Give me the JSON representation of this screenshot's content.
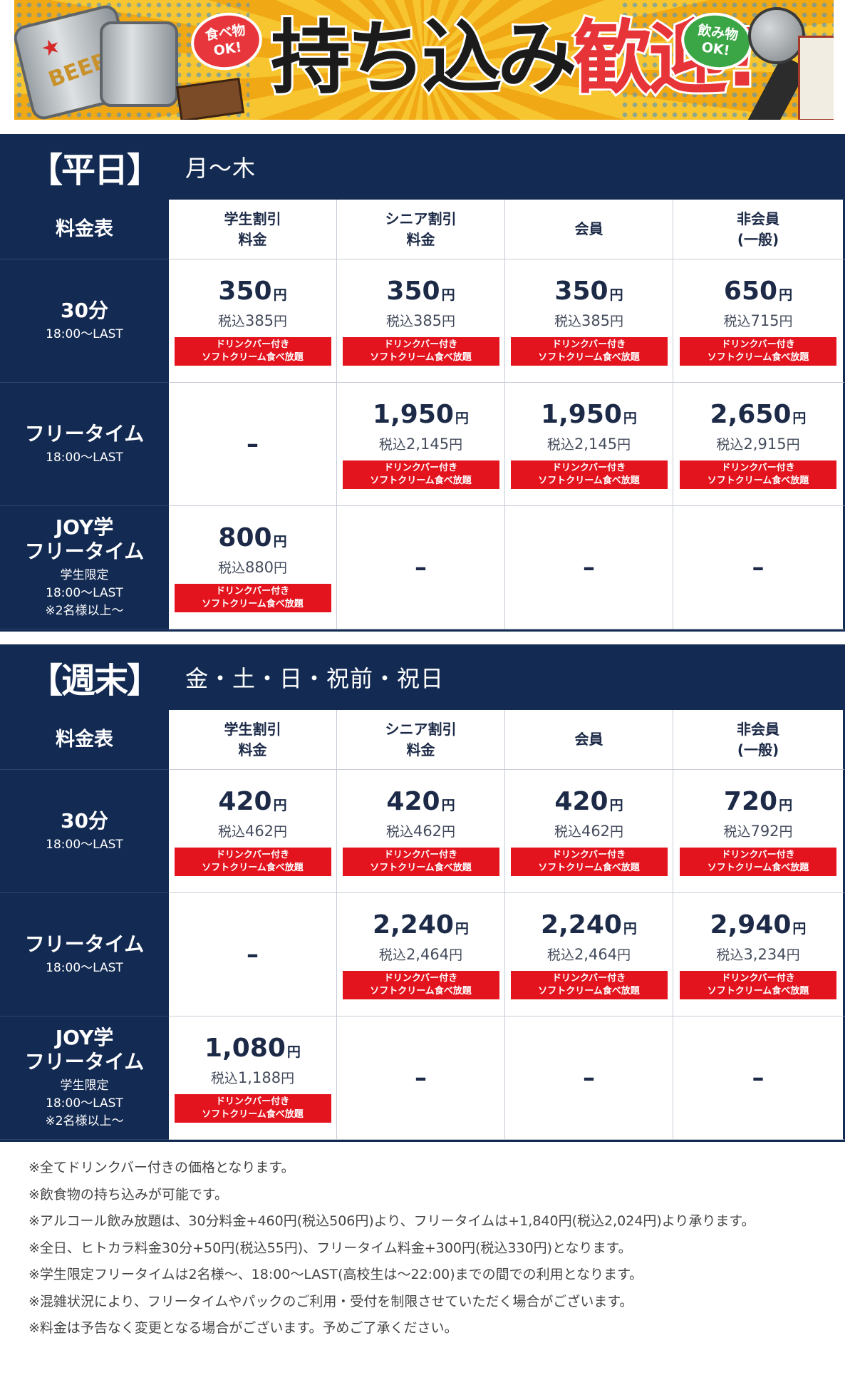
{
  "banner": {
    "title_black": "持ち込み",
    "title_red": "歓迎!",
    "bubble_food_1": "食べ物",
    "bubble_food_2": "OK!",
    "bubble_drink_1": "飲み物",
    "bubble_drink_2": "OK!",
    "can_label": "BEER"
  },
  "colors": {
    "navy": "#132a52",
    "red_badge": "#e3141e",
    "banner_yellow": "#f4b81e",
    "title_red": "#e63439"
  },
  "badge": {
    "line1": "ドリンクバー付き",
    "line2": "ソフトクリーム食べ放題"
  },
  "yen_unit": "円",
  "tax_label": "税込",
  "dash": "–",
  "columns": {
    "corner": "料金表",
    "student": [
      "学生割引",
      "料金"
    ],
    "senior": [
      "シニア割引",
      "料金"
    ],
    "member": [
      "会員"
    ],
    "nonmember": [
      "非会員",
      "(一般)"
    ]
  },
  "rows": {
    "r30": {
      "name": "30分",
      "sub": "18:00〜LAST"
    },
    "free": {
      "name": "フリータイム",
      "sub": "18:00〜LAST"
    },
    "joy": {
      "name1": "JOY学",
      "name2": "フリータイム",
      "sub1": "学生限定",
      "sub2": "18:00〜LAST",
      "sub3": "※2名様以上〜"
    }
  },
  "weekday": {
    "bracket": "【平日】",
    "days": "月～木",
    "r30": {
      "student": [
        "350",
        "385"
      ],
      "senior": [
        "350",
        "385"
      ],
      "member": [
        "350",
        "385"
      ],
      "nonmember": [
        "650",
        "715"
      ]
    },
    "free": {
      "senior": [
        "1,950",
        "2,145"
      ],
      "member": [
        "1,950",
        "2,145"
      ],
      "nonmember": [
        "2,650",
        "2,915"
      ]
    },
    "joy": {
      "student": [
        "800",
        "880"
      ]
    }
  },
  "weekend": {
    "bracket": "【週末】",
    "days": "金・土・日・祝前・祝日",
    "r30": {
      "student": [
        "420",
        "462"
      ],
      "senior": [
        "420",
        "462"
      ],
      "member": [
        "420",
        "462"
      ],
      "nonmember": [
        "720",
        "792"
      ]
    },
    "free": {
      "senior": [
        "2,240",
        "2,464"
      ],
      "member": [
        "2,240",
        "2,464"
      ],
      "nonmember": [
        "2,940",
        "3,234"
      ]
    },
    "joy": {
      "student": [
        "1,080",
        "1,188"
      ]
    }
  },
  "notes": [
    "※全てドリンクバー付きの価格となります。",
    "※飲食物の持ち込みが可能です。",
    "※アルコール飲み放題は、30分料金+460円(税込506円)より、フリータイムは+1,840円(税込2,024円)より承ります。",
    "※全日、ヒトカラ料金30分+50円(税込55円)、フリータイム料金+300円(税込330円)となります。",
    "※学生限定フリータイムは2名様～、18:00～LAST(高校生は～22:00)までの間での利用となります。",
    "※混雑状況により、フリータイムやパックのご利用・受付を制限させていただく場合がございます。",
    "※料金は予告なく変更となる場合がございます。予めご了承ください。"
  ]
}
